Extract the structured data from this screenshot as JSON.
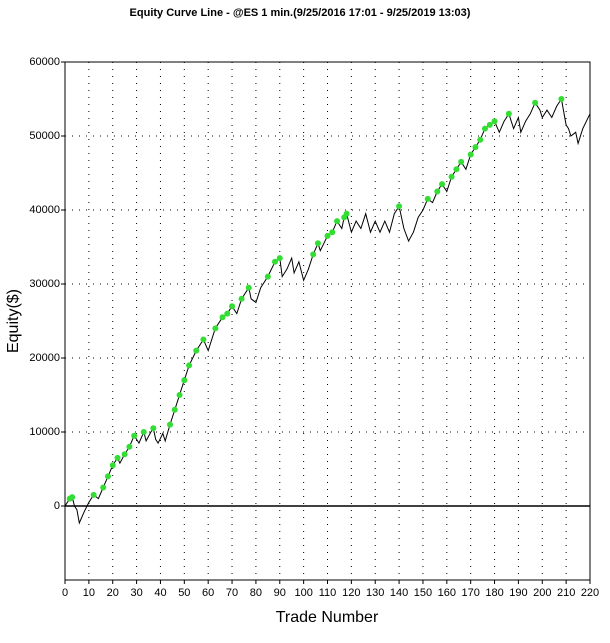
{
  "chart_data": {
    "type": "line",
    "title": "Equity Curve Line - @ES 1 min.(9/25/2016 17:01 - 9/25/2019 13:03)",
    "xlabel": "Trade Number",
    "ylabel": "Equity($)",
    "xlim": [
      0,
      220
    ],
    "xticks": [
      0,
      10,
      20,
      30,
      40,
      50,
      60,
      70,
      80,
      90,
      100,
      110,
      120,
      130,
      140,
      150,
      160,
      170,
      180,
      190,
      200,
      210,
      220
    ],
    "ylim": [
      -10000,
      60000
    ],
    "yticks": [
      0,
      10000,
      20000,
      30000,
      40000,
      50000,
      60000
    ],
    "grid": true,
    "line": {
      "color": "#000000",
      "x": [
        0,
        2,
        3,
        4,
        5,
        6,
        8,
        10,
        12,
        14,
        16,
        18,
        20,
        22,
        23,
        25,
        27,
        29,
        31,
        33,
        34,
        36,
        37,
        38,
        39,
        41,
        42,
        44,
        46,
        48,
        50,
        52,
        55,
        58,
        60,
        63,
        66,
        68,
        70,
        72,
        74,
        77,
        78,
        80,
        82,
        85,
        88,
        90,
        91,
        93,
        95,
        96,
        98,
        100,
        102,
        104,
        106,
        107,
        110,
        112,
        114,
        116,
        117,
        118,
        120,
        122,
        124,
        126,
        128,
        130,
        132,
        134,
        136,
        138,
        140,
        142,
        144,
        146,
        148,
        150,
        152,
        154,
        156,
        158,
        160,
        162,
        164,
        166,
        168,
        170,
        172,
        174,
        176,
        178,
        180,
        182,
        184,
        186,
        188,
        190,
        191,
        193,
        195,
        197,
        199,
        200,
        202,
        204,
        206,
        208,
        210,
        211,
        212,
        214,
        215,
        217,
        220
      ],
      "y": [
        0,
        1000,
        1200,
        0,
        -500,
        -2300,
        -800,
        500,
        1500,
        1000,
        2500,
        4000,
        5500,
        6500,
        5800,
        7000,
        8000,
        9500,
        8500,
        10000,
        8800,
        10000,
        10500,
        9000,
        8500,
        9800,
        8800,
        11000,
        13000,
        15000,
        17000,
        19000,
        21000,
        22500,
        21000,
        24000,
        25500,
        26000,
        27000,
        26000,
        28000,
        29500,
        28000,
        27500,
        29500,
        31000,
        33000,
        33500,
        31000,
        32000,
        33500,
        31500,
        33000,
        30500,
        32000,
        34000,
        35500,
        34500,
        36500,
        37000,
        38500,
        37500,
        39000,
        39500,
        37000,
        38500,
        37500,
        39500,
        37000,
        38500,
        37000,
        38500,
        37000,
        39500,
        40500,
        37500,
        35800,
        37000,
        39000,
        40000,
        41500,
        41000,
        42500,
        43500,
        42500,
        44500,
        45500,
        46500,
        45500,
        47500,
        48500,
        49500,
        51000,
        51500,
        52000,
        50500,
        52000,
        53000,
        51000,
        52500,
        50500,
        52000,
        53000,
        54500,
        53500,
        52500,
        53500,
        52500,
        54000,
        55000,
        51500,
        51000,
        50000,
        50500,
        49000,
        51000,
        53000
      ]
    },
    "markers": {
      "color": "#33dd33",
      "x": [
        2,
        3,
        12,
        16,
        18,
        20,
        22,
        25,
        27,
        29,
        33,
        37,
        44,
        46,
        48,
        50,
        52,
        55,
        58,
        63,
        66,
        68,
        70,
        74,
        77,
        85,
        88,
        90,
        104,
        106,
        110,
        112,
        114,
        117,
        118,
        140,
        152,
        156,
        158,
        162,
        164,
        166,
        170,
        172,
        174,
        176,
        178,
        180,
        186,
        197,
        208
      ],
      "y": [
        1000,
        1200,
        1500,
        2500,
        4000,
        5500,
        6500,
        7000,
        8000,
        9500,
        10000,
        10500,
        11000,
        13000,
        15000,
        17000,
        19000,
        21000,
        22500,
        24000,
        25500,
        26000,
        27000,
        28000,
        29500,
        31000,
        33000,
        33500,
        34000,
        35500,
        36500,
        37000,
        38500,
        39000,
        39500,
        40500,
        41500,
        42500,
        43500,
        44500,
        45500,
        46500,
        47500,
        48500,
        49500,
        51000,
        51500,
        52000,
        53000,
        54500,
        55000
      ]
    }
  }
}
